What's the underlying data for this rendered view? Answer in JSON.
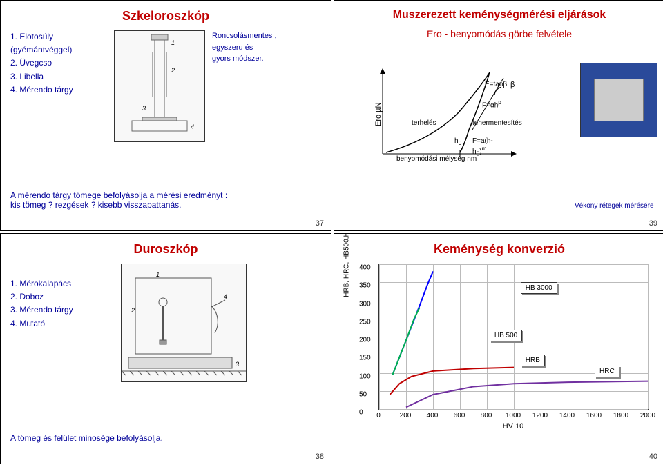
{
  "slide37": {
    "title": "Szkeloroszkóp",
    "desc": "Roncsolásmentes ,\negyszeru és\ngyors módszer.",
    "items": [
      "1. Elotosúly\n   (gyémántvéggel)",
      "2. Üvegcso",
      "3. Libella",
      "4. Mérendo tárgy"
    ],
    "note": "A mérendo tárgy tömege befolyásolja a mérési eredményt :\nkis tömeg ?   rezgések ?   kisebb visszapattanás.",
    "pagenum": "37"
  },
  "slide39": {
    "title": "Muszerezett keménységmérési eljárások",
    "subtitle": "Ero - benyomódás görbe felvétele",
    "ylabel": "Ero µN",
    "curve_labels": {
      "etan": "E=tanβ",
      "beta": "β",
      "fah": "F=αh",
      "p": "p",
      "terh": "terhelés",
      "teherm": "tehermentesítés",
      "h0": "h",
      "h0sub": "0",
      "formula": "F=a(h-h",
      "formula2": ")",
      "fsub": "0",
      "fm": "m"
    },
    "xlabel": "benyomódási mélység  nm",
    "caption": "Vékony rétegek mérésére",
    "pagenum": "39"
  },
  "slide38": {
    "title": "Duroszkóp",
    "items": [
      "1. Mérokalapács",
      "2. Doboz",
      "3. Mérendo tárgy",
      "4. Mutató"
    ],
    "note": "A tömeg és felület minosége befolyásolja.",
    "pagenum": "38"
  },
  "slide40": {
    "title": "Keménység konverzió",
    "chart": {
      "type": "line",
      "xlabel": "HV 10",
      "ylabel": "HRB, HRC, HB500,HB3000",
      "xlim": [
        0,
        2000
      ],
      "ylim": [
        0,
        400
      ],
      "xticks": [
        0,
        200,
        400,
        600,
        800,
        1000,
        1200,
        1400,
        1600,
        1800,
        2000
      ],
      "yticks": [
        0,
        50,
        100,
        150,
        200,
        250,
        300,
        350,
        400
      ],
      "grid_color": "#bbbbbb",
      "series": [
        {
          "name": "HB 3000",
          "color": "#0000ff",
          "label_x": 1050,
          "label_y": 350,
          "points": [
            [
              100,
              95
            ],
            [
              200,
              190
            ],
            [
              300,
              285
            ],
            [
              360,
              345
            ],
            [
              400,
              380
            ]
          ]
        },
        {
          "name": "HB 500",
          "color": "#00b050",
          "label_x": 820,
          "label_y": 220,
          "points": [
            [
              100,
              95
            ],
            [
              200,
              190
            ],
            [
              260,
              250
            ],
            [
              300,
              280
            ]
          ]
        },
        {
          "name": "HRB",
          "color": "#c00000",
          "label_x": 1050,
          "label_y": 150,
          "points": [
            [
              80,
              40
            ],
            [
              150,
              70
            ],
            [
              240,
              90
            ],
            [
              400,
              105
            ],
            [
              700,
              112
            ],
            [
              1000,
              115
            ]
          ]
        },
        {
          "name": "HRC",
          "color": "#7030a0",
          "label_x": 1600,
          "label_y": 120,
          "points": [
            [
              200,
              5
            ],
            [
              400,
              40
            ],
            [
              700,
              62
            ],
            [
              1000,
              70
            ],
            [
              1400,
              74
            ],
            [
              2000,
              77
            ]
          ]
        }
      ]
    },
    "pagenum": "40"
  }
}
